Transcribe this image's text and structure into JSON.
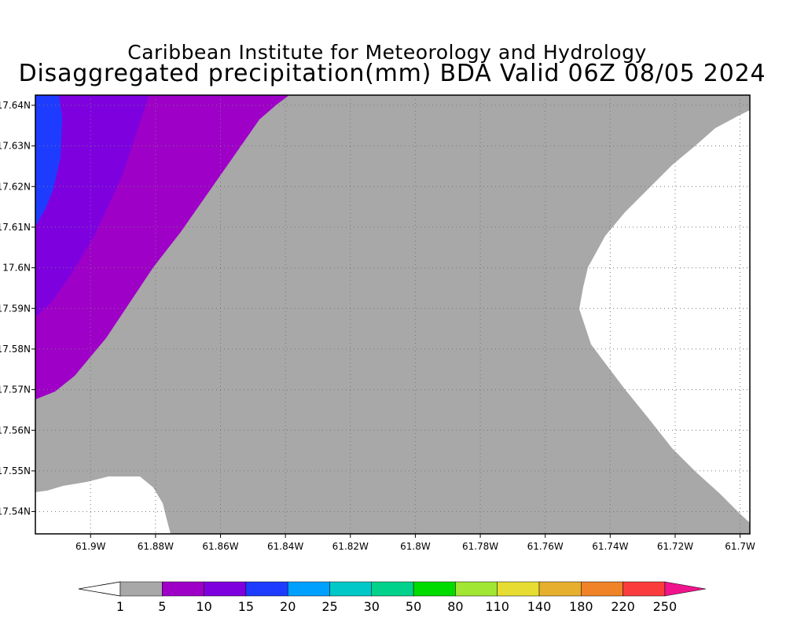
{
  "title_line1": "Caribbean Institute for Meteorology and Hydrology",
  "title_line2": "Disaggregated precipitation(mm) BDA Valid 06Z 08/05 2024",
  "map": {
    "lon_labels": [
      "61.9W",
      "61.88W",
      "61.86W",
      "61.84W",
      "61.82W",
      "61.8W",
      "61.78W",
      "61.76W",
      "61.74W",
      "61.72W",
      "61.7W"
    ],
    "lat_labels": [
      "17.64N",
      "17.63N",
      "17.62N",
      "17.61N",
      "17.6N",
      "17.59N",
      "17.58N",
      "17.57N",
      "17.56N",
      "17.55N",
      "17.54N"
    ],
    "lon_range": [
      -61.917,
      -61.697
    ],
    "lat_range": [
      17.5345,
      17.6425
    ],
    "grid": true,
    "regions": [
      {
        "name": "below-1mm",
        "color": "#ffffff"
      },
      {
        "name": "1-5mm",
        "color": "#a8a8a8"
      },
      {
        "name": "5-10mm",
        "color": "#9f00c8"
      },
      {
        "name": "10-15mm",
        "color": "#7f00df"
      },
      {
        "name": "15-20mm",
        "color": "#1e3cff"
      }
    ]
  },
  "colorbar": {
    "levels": [
      "1",
      "5",
      "10",
      "15",
      "20",
      "25",
      "30",
      "50",
      "80",
      "110",
      "140",
      "180",
      "220",
      "250"
    ],
    "colors": [
      "#a8a8a8",
      "#9f00c8",
      "#7f00df",
      "#1e3cff",
      "#00a0ff",
      "#00c8c8",
      "#00d28c",
      "#00dc00",
      "#a0e632",
      "#e6dc32",
      "#e6af2d",
      "#f08228",
      "#fa3c3c"
    ],
    "under_color": "#ffffff",
    "over_color": "#f0148c"
  }
}
